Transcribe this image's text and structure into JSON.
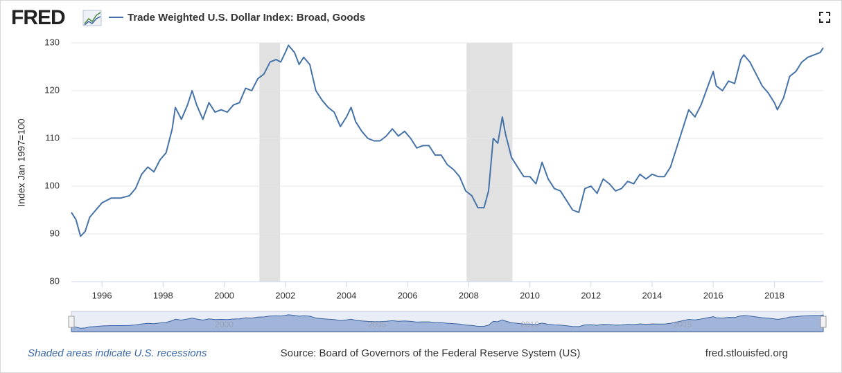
{
  "logo": "FRED",
  "chart_data": {
    "type": "line",
    "y_label": "Index Jan 1997=100",
    "x": [
      1995.0,
      1995.15,
      1995.3,
      1995.45,
      1995.6,
      1995.8,
      1996.0,
      1996.3,
      1996.6,
      1996.9,
      1997.1,
      1997.3,
      1997.5,
      1997.7,
      1997.9,
      1998.1,
      1998.3,
      1998.4,
      1998.6,
      1998.8,
      1998.95,
      1999.1,
      1999.3,
      1999.5,
      1999.7,
      1999.9,
      2000.1,
      2000.3,
      2000.5,
      2000.7,
      2000.9,
      2001.1,
      2001.3,
      2001.5,
      2001.7,
      2001.85,
      2002.0,
      2002.1,
      2002.3,
      2002.45,
      2002.6,
      2002.8,
      2003.0,
      2003.2,
      2003.4,
      2003.6,
      2003.8,
      2004.0,
      2004.15,
      2004.3,
      2004.5,
      2004.7,
      2004.9,
      2005.1,
      2005.3,
      2005.5,
      2005.7,
      2005.9,
      2006.1,
      2006.3,
      2006.5,
      2006.7,
      2006.9,
      2007.1,
      2007.3,
      2007.5,
      2007.7,
      2007.9,
      2008.1,
      2008.3,
      2008.5,
      2008.65,
      2008.8,
      2008.95,
      2009.1,
      2009.2,
      2009.4,
      2009.6,
      2009.8,
      2010.0,
      2010.2,
      2010.4,
      2010.6,
      2010.8,
      2011.0,
      2011.2,
      2011.4,
      2011.6,
      2011.8,
      2012.0,
      2012.2,
      2012.4,
      2012.6,
      2012.8,
      2013.0,
      2013.2,
      2013.4,
      2013.6,
      2013.8,
      2014.0,
      2014.2,
      2014.4,
      2014.6,
      2014.8,
      2015.0,
      2015.2,
      2015.4,
      2015.6,
      2015.8,
      2016.0,
      2016.1,
      2016.3,
      2016.5,
      2016.7,
      2016.9,
      2017.0,
      2017.2,
      2017.4,
      2017.6,
      2017.8,
      2018.0,
      2018.1,
      2018.3,
      2018.5,
      2018.7,
      2018.9,
      2019.1,
      2019.3,
      2019.5,
      2019.6
    ],
    "series": [
      {
        "name": "Trade Weighted U.S. Dollar Index: Broad, Goods",
        "color": "#4572a7",
        "values": [
          94.5,
          93,
          89.5,
          90.5,
          93.5,
          95,
          96.5,
          97.5,
          97.5,
          98,
          99.5,
          102.5,
          104,
          103,
          105.5,
          107,
          112,
          116.5,
          114,
          117,
          120,
          117,
          114,
          117.5,
          115.5,
          116,
          115.5,
          117,
          117.5,
          120.5,
          120,
          122.5,
          123.5,
          126,
          126.5,
          126,
          128,
          129.5,
          128,
          125.5,
          127,
          125.5,
          120,
          118,
          116.5,
          115.5,
          112.5,
          114.5,
          116.5,
          113.5,
          111.5,
          110,
          109.5,
          109.5,
          110.5,
          112,
          110.5,
          111.5,
          110,
          108,
          108.5,
          108.5,
          106.5,
          106.5,
          104.5,
          103.5,
          102,
          99,
          98,
          95.5,
          95.5,
          99,
          110,
          109,
          114.5,
          111,
          106,
          104,
          102,
          102,
          100.5,
          105,
          101.5,
          99.5,
          99,
          97,
          95,
          94.5,
          99.5,
          100,
          98.5,
          101.5,
          100.5,
          99,
          99.5,
          101,
          100.5,
          102.5,
          101.5,
          102.5,
          102,
          102,
          104,
          108,
          112,
          116,
          114.5,
          117,
          120.5,
          124,
          121,
          120,
          122,
          121.5,
          126.5,
          127.5,
          126,
          123.5,
          121,
          119.5,
          117.5,
          116,
          118.5,
          123,
          124,
          126,
          127,
          127.5,
          128,
          129
        ]
      }
    ],
    "xlim": [
      1995,
      2019.6
    ],
    "ylim": [
      80,
      130
    ],
    "xticks": [
      1996,
      1998,
      2000,
      2002,
      2004,
      2006,
      2008,
      2010,
      2012,
      2014,
      2016,
      2018
    ],
    "yticks": [
      80,
      90,
      100,
      110,
      120,
      130
    ],
    "grid": true,
    "recessions": [
      [
        2001.15,
        2001.83
      ],
      [
        2007.93,
        2009.43
      ]
    ],
    "recession_color": "#e1e1e1",
    "navigator_xticks": [
      2000,
      2005,
      2010,
      2015
    ]
  },
  "footer": {
    "note": "Shaded areas indicate U.S. recessions",
    "source": "Source: Board of Governors of the Federal Reserve System (US)",
    "site": "fred.stlouisfed.org"
  }
}
